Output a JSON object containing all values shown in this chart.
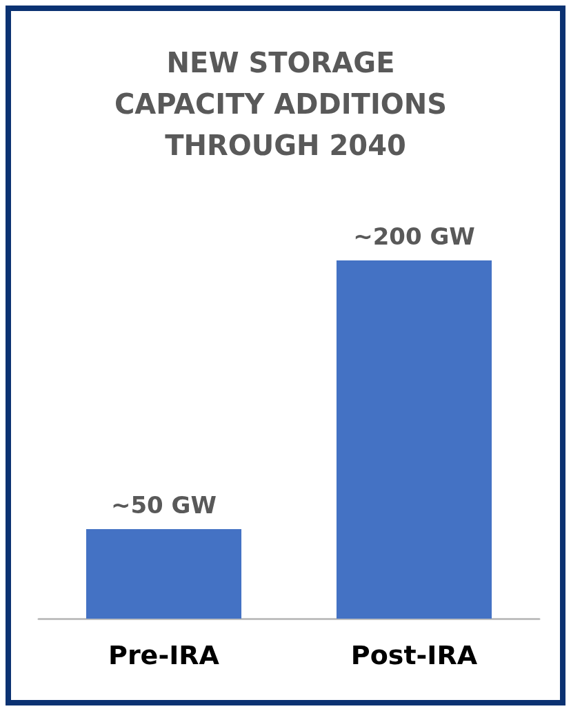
{
  "chart_data": {
    "type": "bar",
    "title": "NEW STORAGE CAPACITY ADDITIONS THROUGH 2040",
    "categories": [
      "Pre-IRA",
      "Post-IRA"
    ],
    "values": [
      50,
      200
    ],
    "value_labels": [
      "~50 GW",
      "~200 GW"
    ],
    "color": "#4472c4"
  }
}
